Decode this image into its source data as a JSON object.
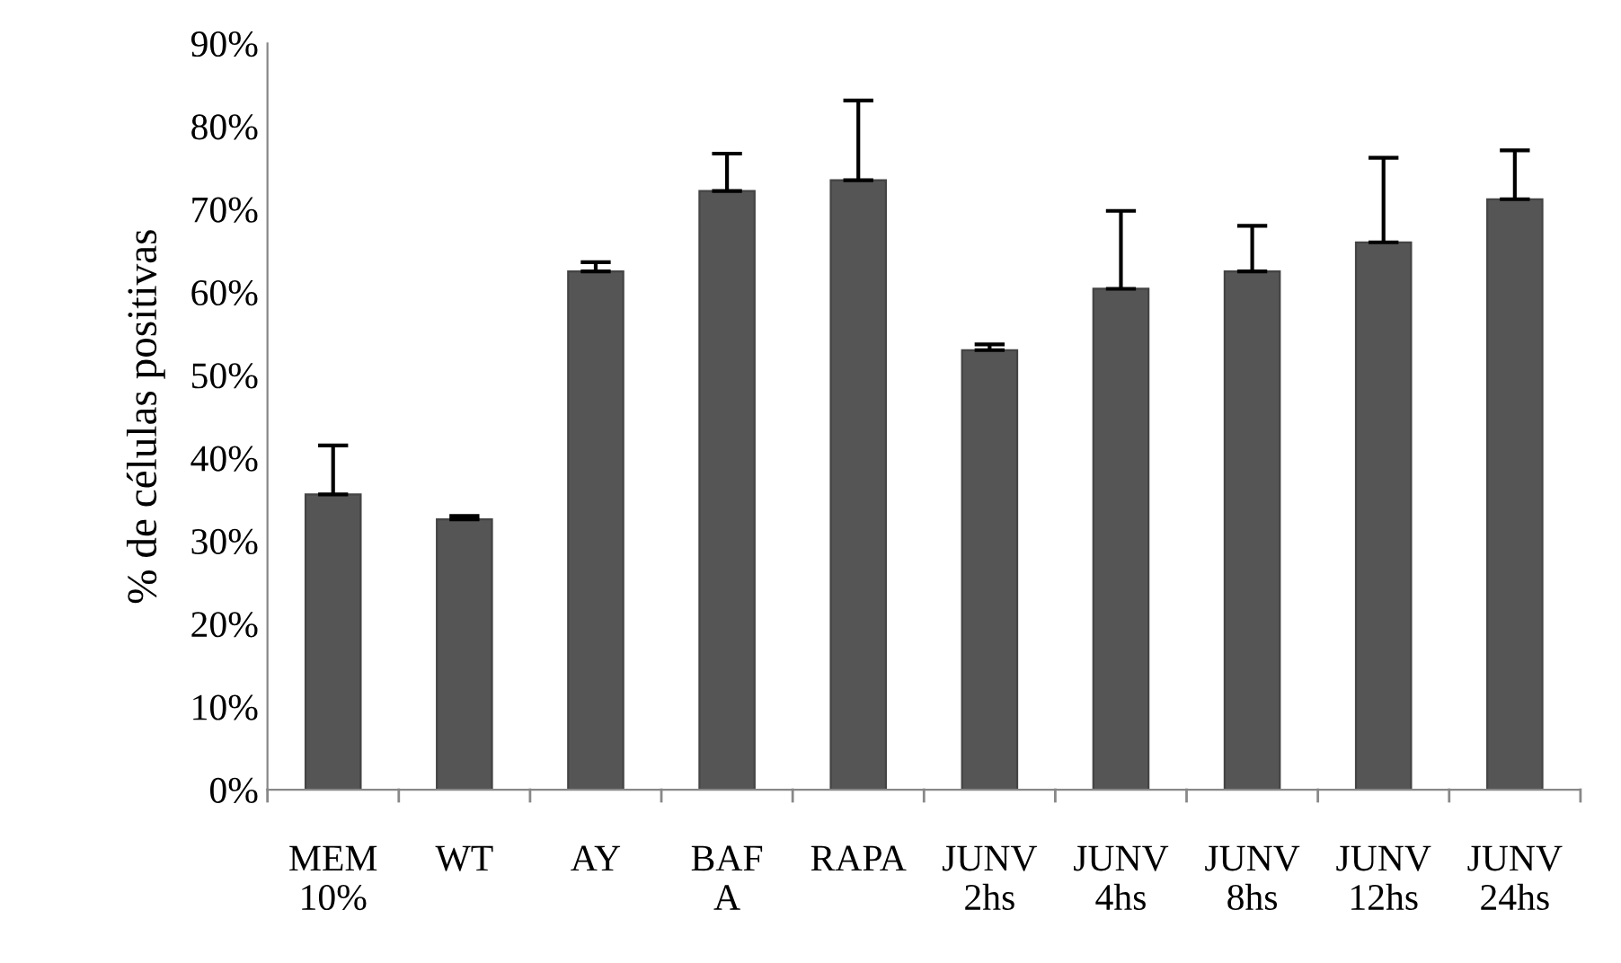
{
  "chart_data": {
    "type": "bar",
    "ylabel": "% de células positivas",
    "categories": [
      "MEM\n10%",
      "WT",
      "AY",
      "BAF\nA",
      "RAPA",
      "JUNV\n2hs",
      "JUNV\n4hs",
      "JUNV\n8hs",
      "JUNV\n12hs",
      "JUNV\n24hs"
    ],
    "values": [
      35.6,
      32.6,
      62.5,
      72.2,
      73.5,
      53.0,
      60.4,
      62.5,
      66.0,
      71.2
    ],
    "errors": [
      [
        35.6,
        41.5
      ],
      [
        32.6,
        33.0
      ],
      [
        62.5,
        63.6
      ],
      [
        72.2,
        76.7
      ],
      [
        73.5,
        83.1
      ],
      [
        53.0,
        53.7
      ],
      [
        60.4,
        69.8
      ],
      [
        62.5,
        68.0
      ],
      [
        66.0,
        76.2
      ],
      [
        71.2,
        77.1
      ]
    ],
    "color": "#555555",
    "ylim": [
      0,
      90
    ],
    "yticks": [
      {
        "value": 0,
        "label": "0%"
      },
      {
        "value": 10,
        "label": "10%"
      },
      {
        "value": 20,
        "label": "20%"
      },
      {
        "value": 30,
        "label": "30%"
      },
      {
        "value": 40,
        "label": "40%"
      },
      {
        "value": 50,
        "label": "50%"
      },
      {
        "value": 60,
        "label": "60%"
      },
      {
        "value": 70,
        "label": "70%"
      },
      {
        "value": 80,
        "label": "80%"
      },
      {
        "value": 90,
        "label": "90%"
      }
    ],
    "grid": false,
    "legend": false
  }
}
